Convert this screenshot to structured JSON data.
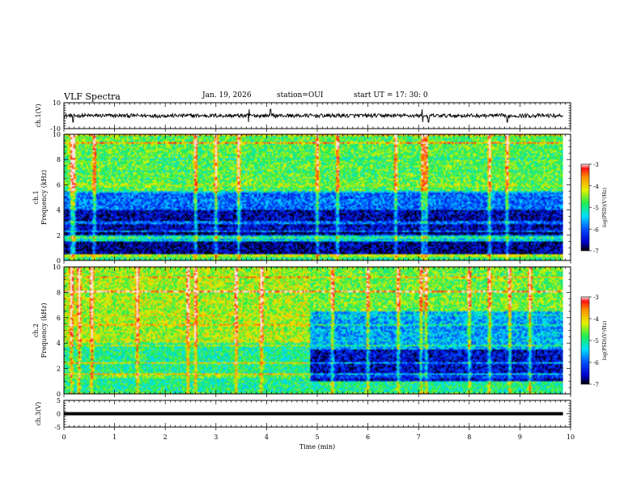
{
  "header": {
    "title": "VLF Spectra",
    "date": "Jan. 19, 2026",
    "station": "station=OUI",
    "start": "start  UT =   17: 30: 0"
  },
  "chart_data": [
    {
      "type": "line",
      "panel": "ch1-waveform",
      "ylabel": "ch.1(V)",
      "ylim": [
        -10,
        10
      ],
      "ytick_labels": [
        "10",
        "-10"
      ],
      "x_range_min": [
        0,
        9.85
      ],
      "baseline_v": 0,
      "noise_amplitude_v": 1.5,
      "spike_times_min": [
        0.18,
        3.65,
        4.08,
        7.08,
        7.2,
        8.75
      ],
      "spike_max_amplitude_v": 5
    },
    {
      "type": "heatmap",
      "panel": "ch1-spectrogram",
      "ylabel": "ch.1 Frequency (kHz)",
      "ylim": [
        0,
        10
      ],
      "ytick_labels": [
        "0",
        "2",
        "4",
        "6",
        "8",
        "10"
      ],
      "x_range_min": [
        0,
        9.85
      ],
      "colorbar": {
        "label": "log(PSD)(V²/Hz)",
        "range": [
          -7,
          -3
        ],
        "tick_labels": [
          "-3",
          "-4",
          "-5",
          "-6",
          "-7"
        ]
      },
      "log_psd_by_band": [
        {
          "freq_khz": [
            0,
            0.5
          ],
          "log_psd": -4.9
        },
        {
          "freq_khz": [
            0.5,
            1.5
          ],
          "log_psd": -6.7
        },
        {
          "freq_khz": [
            1.5,
            2.0
          ],
          "log_psd": -5.4
        },
        {
          "freq_khz": [
            2.0,
            4.0
          ],
          "log_psd": -6.6
        },
        {
          "freq_khz": [
            4.0,
            5.5
          ],
          "log_psd": -5.9
        },
        {
          "freq_khz": [
            5.5,
            10.0
          ],
          "log_psd": -4.7
        }
      ],
      "hot_band_khz": [
        0.3,
        0.5
      ],
      "impulsive_event_times_min": [
        0.15,
        0.2,
        0.6,
        2.6,
        3.0,
        3.45,
        5.0,
        5.4,
        6.55,
        7.08,
        7.15,
        8.4,
        8.75
      ],
      "patch": {
        "time_min": [
          0.2,
          1.7
        ],
        "freq_khz": [
          1.5,
          2.0
        ],
        "log_psd": -5.3
      }
    },
    {
      "type": "heatmap",
      "panel": "ch2-spectrogram",
      "ylabel": "ch.2 Frequency (kHz)",
      "ylim": [
        0,
        10
      ],
      "ytick_labels": [
        "0",
        "2",
        "4",
        "6",
        "8",
        "10"
      ],
      "x_range_min": [
        0,
        9.85
      ],
      "colorbar": {
        "label": "log(PSD)(V²/Hz)",
        "range": [
          -7,
          -3
        ],
        "tick_labels": [
          "-3",
          "-4",
          "-5",
          "-6",
          "-7"
        ]
      },
      "regime_change_min": 4.85,
      "before_change_log_psd_by_band": [
        {
          "freq_khz": [
            0,
            4.0
          ],
          "log_psd": -5.0
        },
        {
          "freq_khz": [
            4.0,
            10.0
          ],
          "log_psd": -4.4
        }
      ],
      "after_change_log_psd_by_band": [
        {
          "freq_khz": [
            0,
            1.0
          ],
          "log_psd": -5.0
        },
        {
          "freq_khz": [
            1.0,
            3.5
          ],
          "log_psd": -6.5
        },
        {
          "freq_khz": [
            3.5,
            6.5
          ],
          "log_psd": -5.6
        },
        {
          "freq_khz": [
            6.5,
            10.0
          ],
          "log_psd": -4.6
        }
      ],
      "impulsive_event_times_min": [
        0.15,
        0.3,
        0.55,
        1.45,
        2.45,
        2.6,
        3.4,
        3.9,
        5.3,
        6.0,
        6.6,
        7.05,
        7.15,
        8.0,
        8.4,
        8.8,
        9.2
      ]
    },
    {
      "type": "line",
      "panel": "ch3-waveform",
      "ylabel": "ch.3(V)",
      "ylim": [
        -5,
        5
      ],
      "ytick_labels": [
        "5",
        "0",
        "-5"
      ],
      "x_range_min": [
        0,
        9.85
      ],
      "constant_v": 0,
      "xlabel": "Time (min)",
      "xlim": [
        0,
        10
      ],
      "xtick_labels": [
        "0",
        "1",
        "2",
        "3",
        "4",
        "5",
        "6",
        "7",
        "8",
        "9",
        "10"
      ]
    }
  ]
}
